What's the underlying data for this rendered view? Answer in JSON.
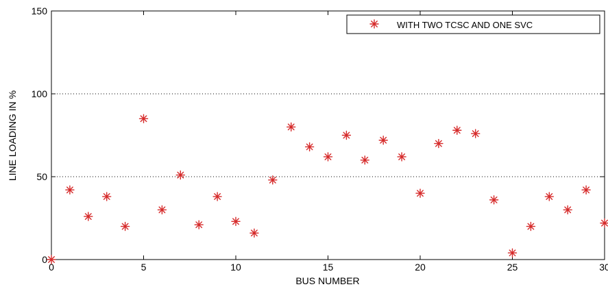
{
  "chart_data": {
    "type": "scatter",
    "title": "",
    "xlabel": "BUS NUMBER",
    "ylabel": "LINE LOADING IN %",
    "xlim": [
      0,
      30
    ],
    "ylim": [
      0,
      150
    ],
    "x_ticks": [
      "0",
      "5",
      "10",
      "15",
      "20",
      "25",
      "30"
    ],
    "y_ticks": [
      "0",
      "50",
      "100",
      "150"
    ],
    "grid": "horizontal dotted at 50 and 100",
    "legend_position": "top-right",
    "marker": "asterisk",
    "marker_color": "#d62a2a",
    "series": [
      {
        "name": "WITH TWO TCSC AND ONE SVC",
        "x": [
          0,
          1,
          2,
          3,
          4,
          5,
          6,
          7,
          8,
          9,
          10,
          11,
          12,
          13,
          14,
          15,
          16,
          17,
          18,
          19,
          20,
          21,
          22,
          23,
          24,
          25,
          26,
          27,
          28,
          29,
          30
        ],
        "values": [
          0,
          42,
          26,
          38,
          20,
          85,
          30,
          51,
          21,
          38,
          23,
          16,
          48,
          80,
          68,
          62,
          75,
          60,
          72,
          62,
          40,
          70,
          78,
          76,
          36,
          4,
          20,
          38,
          30,
          42,
          22
        ]
      }
    ]
  }
}
